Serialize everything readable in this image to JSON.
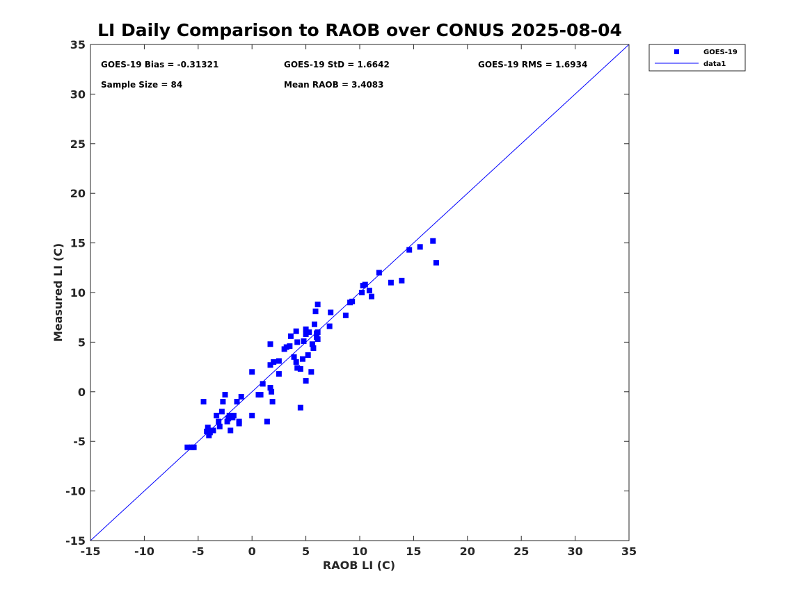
{
  "chart_data": {
    "type": "scatter",
    "title": "LI Daily Comparison to RAOB over CONUS 2025-08-04",
    "xlabel": "RAOB LI (C)",
    "ylabel": "Measured LI (C)",
    "xlim": [
      -15,
      35
    ],
    "ylim": [
      -15,
      35
    ],
    "xticks": [
      "-15",
      "-10",
      "-5",
      "0",
      "5",
      "10",
      "15",
      "20",
      "25",
      "30",
      "35"
    ],
    "yticks": [
      "-15",
      "-10",
      "-5",
      "0",
      "5",
      "10",
      "15",
      "20",
      "25",
      "30",
      "35"
    ],
    "grid": false,
    "legend_position": "outside-top-right",
    "colors": {
      "series": "#0000ff",
      "axis": "#262626"
    },
    "stats": {
      "bias": "GOES-19 Bias = -0.31321",
      "std": "GOES-19 StD = 1.6642",
      "rms": "GOES-19 RMS = 1.6934",
      "sample_size": "Sample Size = 84",
      "mean_raob": "Mean RAOB = 3.4083"
    },
    "series": [
      {
        "name": "GOES-19",
        "marker": "square",
        "points": [
          [
            -6.0,
            -5.6
          ],
          [
            -5.6,
            -5.6
          ],
          [
            -5.4,
            -5.6
          ],
          [
            -4.5,
            -1.0
          ],
          [
            -4.2,
            -4.0
          ],
          [
            -4.1,
            -3.6
          ],
          [
            -4.0,
            -4.4
          ],
          [
            -3.9,
            -4.1
          ],
          [
            -3.6,
            -3.9
          ],
          [
            -3.3,
            -2.4
          ],
          [
            -3.1,
            -3.0
          ],
          [
            -3.0,
            -3.5
          ],
          [
            -2.8,
            -2.0
          ],
          [
            -2.7,
            -1.0
          ],
          [
            -2.5,
            -0.3
          ],
          [
            -2.3,
            -3.0
          ],
          [
            -2.2,
            -2.7
          ],
          [
            -2.1,
            -2.4
          ],
          [
            -2.0,
            -3.9
          ],
          [
            -1.8,
            -2.6
          ],
          [
            -1.7,
            -2.4
          ],
          [
            -1.4,
            -1.0
          ],
          [
            -1.2,
            -3.0
          ],
          [
            -1.2,
            -3.2
          ],
          [
            -1.0,
            -0.5
          ],
          [
            0.0,
            2.0
          ],
          [
            0.0,
            -2.4
          ],
          [
            0.6,
            -0.3
          ],
          [
            0.8,
            -0.3
          ],
          [
            1.0,
            0.8
          ],
          [
            1.4,
            -3.0
          ],
          [
            1.7,
            4.8
          ],
          [
            1.7,
            2.7
          ],
          [
            1.7,
            0.4
          ],
          [
            1.8,
            0.0
          ],
          [
            1.9,
            -1.0
          ],
          [
            2.0,
            3.0
          ],
          [
            2.5,
            3.1
          ],
          [
            2.5,
            1.8
          ],
          [
            3.0,
            4.3
          ],
          [
            3.2,
            4.5
          ],
          [
            3.5,
            4.6
          ],
          [
            3.6,
            5.6
          ],
          [
            3.9,
            3.5
          ],
          [
            4.1,
            6.1
          ],
          [
            4.1,
            3.0
          ],
          [
            4.2,
            2.4
          ],
          [
            4.2,
            5.0
          ],
          [
            4.5,
            2.3
          ],
          [
            4.5,
            -1.6
          ],
          [
            4.7,
            3.3
          ],
          [
            4.8,
            5.1
          ],
          [
            5.0,
            1.1
          ],
          [
            5.0,
            6.3
          ],
          [
            5.0,
            5.8
          ],
          [
            5.2,
            3.7
          ],
          [
            5.3,
            6.0
          ],
          [
            5.5,
            2.0
          ],
          [
            5.6,
            4.8
          ],
          [
            5.7,
            4.4
          ],
          [
            5.8,
            6.8
          ],
          [
            5.9,
            8.1
          ],
          [
            6.0,
            5.9
          ],
          [
            6.0,
            5.5
          ],
          [
            6.1,
            8.8
          ],
          [
            6.1,
            5.3
          ],
          [
            6.1,
            6.0
          ],
          [
            7.2,
            6.6
          ],
          [
            7.3,
            8.0
          ],
          [
            8.7,
            7.7
          ],
          [
            9.1,
            9.0
          ],
          [
            9.3,
            9.1
          ],
          [
            10.2,
            10.0
          ],
          [
            10.3,
            10.7
          ],
          [
            10.5,
            10.8
          ],
          [
            10.9,
            10.2
          ],
          [
            11.1,
            9.6
          ],
          [
            11.8,
            12.0
          ],
          [
            12.9,
            11.0
          ],
          [
            13.9,
            11.2
          ],
          [
            14.6,
            14.3
          ],
          [
            15.6,
            14.6
          ],
          [
            16.8,
            15.2
          ],
          [
            17.1,
            13.0
          ]
        ]
      },
      {
        "name": "data1",
        "type": "line",
        "points": [
          [
            -15,
            -15
          ],
          [
            35,
            35
          ]
        ]
      }
    ]
  }
}
